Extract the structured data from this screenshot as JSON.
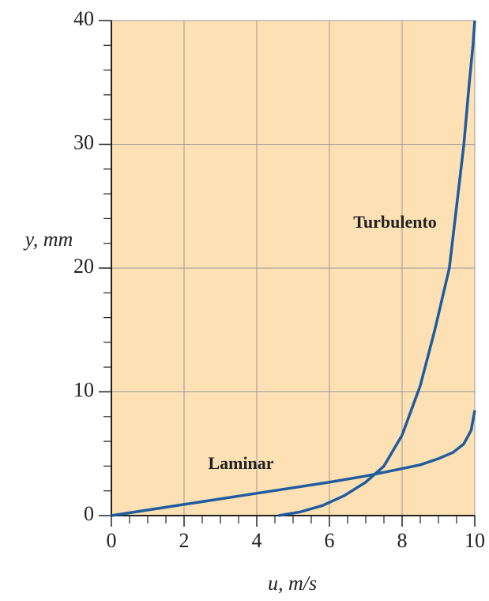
{
  "chart_data": {
    "type": "line",
    "xlabel": "u, m/s",
    "ylabel": "y, mm",
    "xlim": [
      0,
      10
    ],
    "ylim": [
      0,
      40
    ],
    "xticks": [
      0,
      2,
      4,
      6,
      8,
      10
    ],
    "yticks": [
      0,
      10,
      20,
      30,
      40
    ],
    "x_minor_ticks": [
      0.5,
      1,
      1.5,
      2.5,
      3,
      3.5,
      4.5,
      5,
      5.5,
      6.5,
      7,
      7.5,
      8.5,
      9,
      9.5
    ],
    "y_minor_ticks": [
      2,
      4,
      6,
      8,
      12,
      14,
      16,
      18,
      22,
      24,
      26,
      28,
      32,
      34,
      36,
      38
    ],
    "grid": true,
    "background": "#fde0b3",
    "series": [
      {
        "name": "Laminar",
        "color": "#1f5c9e",
        "x": [
          0,
          2,
          4,
          6,
          7,
          8,
          8.5,
          9,
          9.4,
          9.7,
          9.9,
          10
        ],
        "values": [
          0,
          0.9,
          1.8,
          2.7,
          3.2,
          3.8,
          4.1,
          4.6,
          5.1,
          5.8,
          6.9,
          8.5
        ]
      },
      {
        "name": "Turbulento",
        "color": "#1f5c9e",
        "x": [
          4.6,
          5.2,
          5.8,
          6.4,
          7,
          7.5,
          8,
          8.5,
          8.9,
          9.3,
          9.5,
          9.7,
          9.85,
          9.95,
          10
        ],
        "values": [
          0,
          0.3,
          0.8,
          1.6,
          2.7,
          4,
          6.5,
          10.5,
          15,
          20,
          25,
          30,
          35,
          38,
          40
        ]
      }
    ]
  }
}
